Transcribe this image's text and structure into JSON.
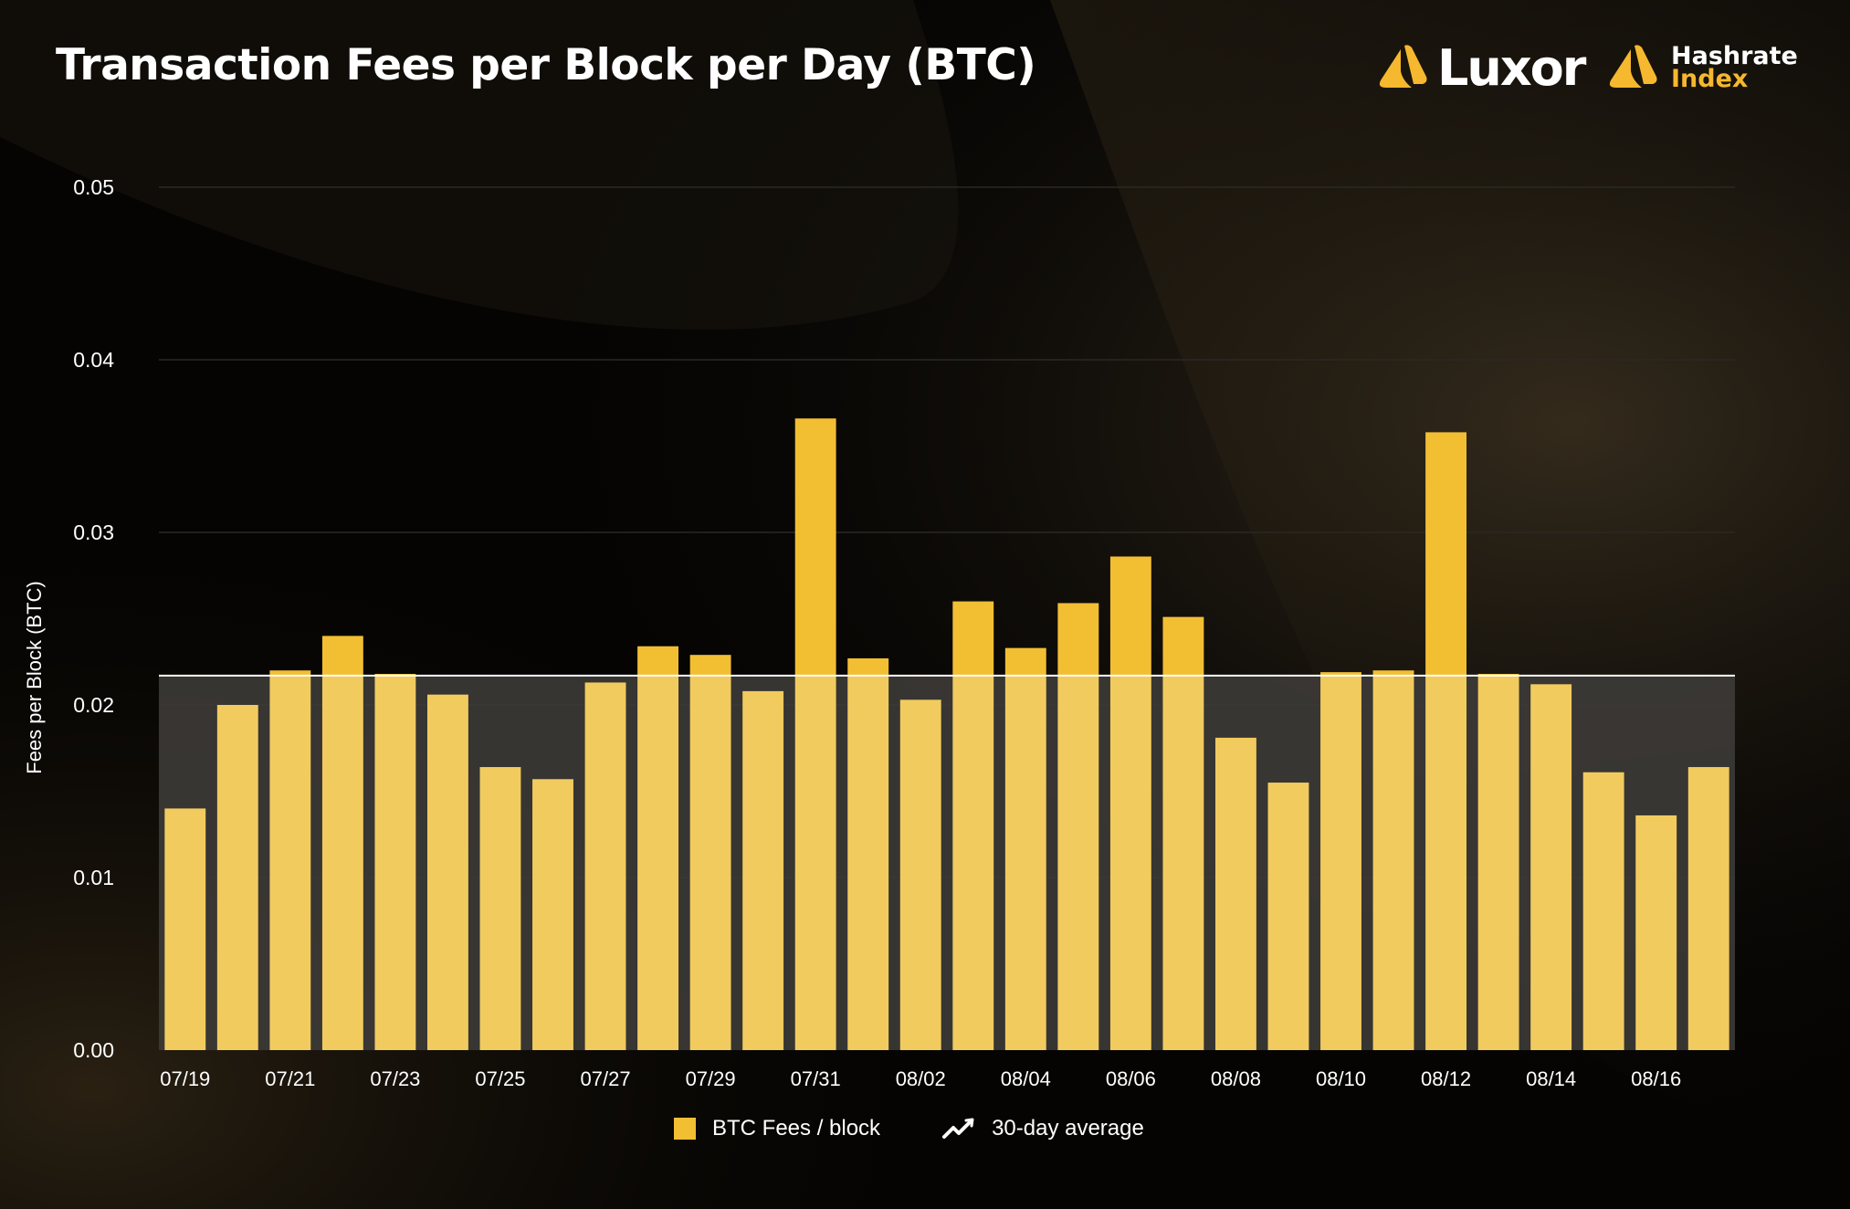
{
  "title": "Transaction Fees per Block per Day (BTC)",
  "logos": {
    "luxor": "Luxor",
    "hashrate_index_line1": "Hashrate",
    "hashrate_index_line2": "Index"
  },
  "colors": {
    "bar": "#f2bf33",
    "bar_under_average": "#f2cb5f",
    "average_band": "#3d3b37",
    "average_line": "#ffffff",
    "grid": "#2a2825",
    "text": "#ffffff",
    "accent": "#f5b82e"
  },
  "legend": {
    "bars_label": "BTC Fees / block",
    "line_label": "30-day average",
    "bars_icon": "square-swatch",
    "line_icon": "trend-line-icon"
  },
  "chart_data": {
    "type": "bar",
    "ylabel": "Fees per Block (BTC)",
    "xlabel": "",
    "ylim": [
      0,
      0.05
    ],
    "yticks": [
      "0.00",
      "0.01",
      "0.02",
      "0.03",
      "0.04",
      "0.05"
    ],
    "grid": true,
    "legend_position": "bottom-center",
    "categories": [
      "07/19",
      "07/20",
      "07/21",
      "07/22",
      "07/23",
      "07/24",
      "07/25",
      "07/26",
      "07/27",
      "07/28",
      "07/29",
      "07/30",
      "07/31",
      "08/01",
      "08/02",
      "08/03",
      "08/04",
      "08/05",
      "08/06",
      "08/07",
      "08/08",
      "08/09",
      "08/10",
      "08/11",
      "08/12",
      "08/13",
      "08/14",
      "08/15",
      "08/16",
      "08/17"
    ],
    "xtick_labels": [
      "07/19",
      "07/21",
      "07/23",
      "07/25",
      "07/27",
      "07/29",
      "07/31",
      "08/02",
      "08/04",
      "08/06",
      "08/08",
      "08/10",
      "08/12",
      "08/14",
      "08/16"
    ],
    "series": [
      {
        "name": "BTC Fees / block",
        "values": [
          0.014,
          0.02,
          0.022,
          0.024,
          0.0218,
          0.0206,
          0.0164,
          0.0157,
          0.0213,
          0.0234,
          0.0229,
          0.0208,
          0.0366,
          0.0227,
          0.0203,
          0.026,
          0.0233,
          0.0259,
          0.0286,
          0.0251,
          0.0181,
          0.0155,
          0.0219,
          0.022,
          0.0358,
          0.0218,
          0.0212,
          0.0161,
          0.0136,
          0.0164
        ]
      },
      {
        "name": "30-day average",
        "type": "line",
        "value": 0.0217
      }
    ]
  }
}
